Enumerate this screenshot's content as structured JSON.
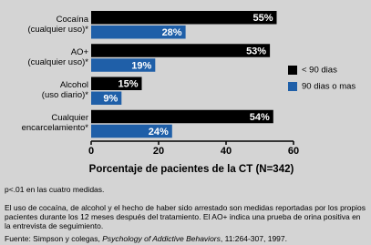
{
  "chart_data": {
    "type": "barh",
    "categories": [
      "Cocaína\n(cualquier uso)*",
      "AO+\n(cualquier uso)*",
      "Alcohol\n(uso diario)*",
      "Cualquier\nencarcelamiento*"
    ],
    "series": [
      {
        "name": "< 90 dias",
        "color": "#000000",
        "values": [
          55,
          53,
          15,
          54
        ],
        "value_labels": [
          "55%",
          "53%",
          "15%",
          "54%"
        ]
      },
      {
        "name": "90 dias o mas",
        "color": "#1f5fa8",
        "values": [
          28,
          19,
          9,
          24
        ],
        "value_labels": [
          "28%",
          "19%",
          "9%",
          "24%"
        ]
      }
    ],
    "xlim": [
      0,
      60
    ],
    "xticks": [
      0,
      20,
      40,
      60
    ],
    "grid": false,
    "xlabel": "Porcentaje de pacientes de la CT (N=342)",
    "legend": "right"
  },
  "notes": [
    "p<.01 en las cuatro medidas.",
    "El uso de cocaína, de alcohol y el hecho de haber sido arrestado son medidas reportadas por los propios pacientes durante los 12 meses después del tratamiento.  El AO+ indica una prueba de orina positiva en la entrevista de seguimiento."
  ],
  "source": [
    "Fuente:  Simpson y colegas, ",
    "Psychology of Addictive Behaviors",
    ", 11:264-307, 1997."
  ]
}
